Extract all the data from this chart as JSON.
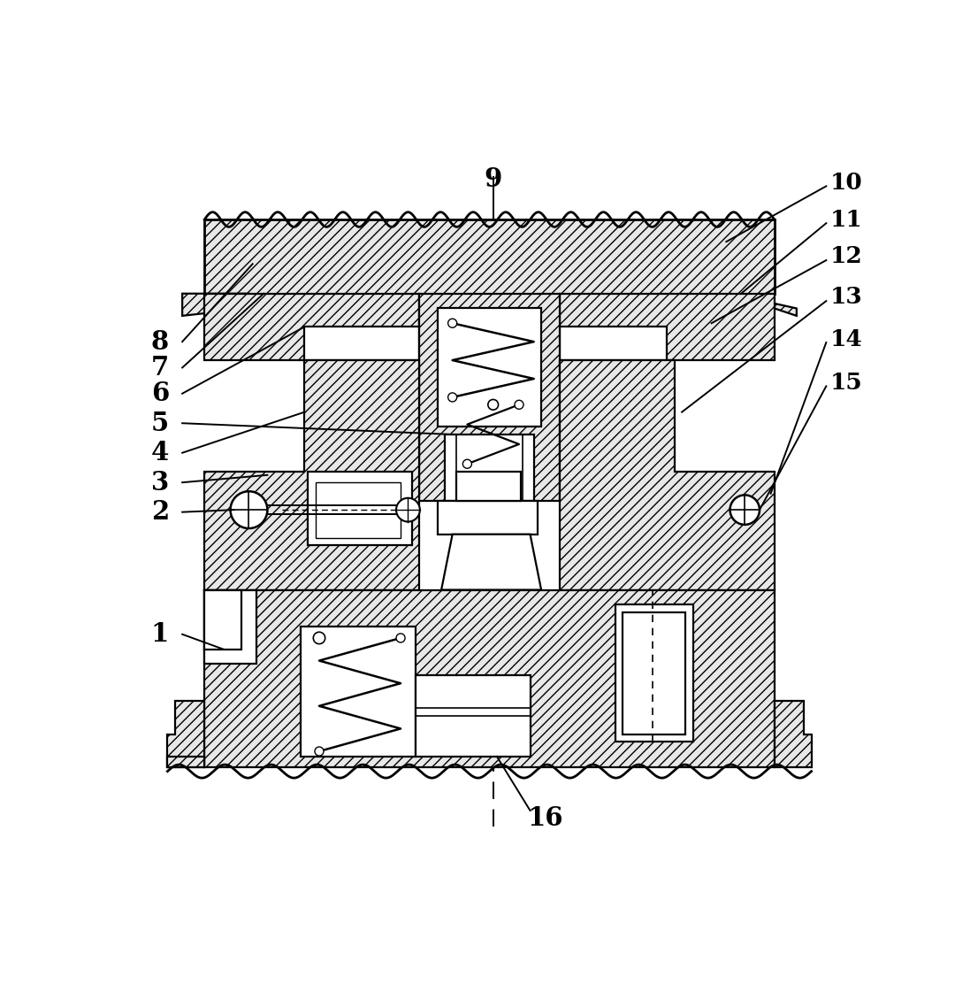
{
  "background_color": "#ffffff",
  "label_fontsize": 21,
  "line_color": "#000000",
  "fig_width": 10.8,
  "fig_height": 11.21,
  "hatch": "///",
  "hatch_fc": "#e8e8e8"
}
